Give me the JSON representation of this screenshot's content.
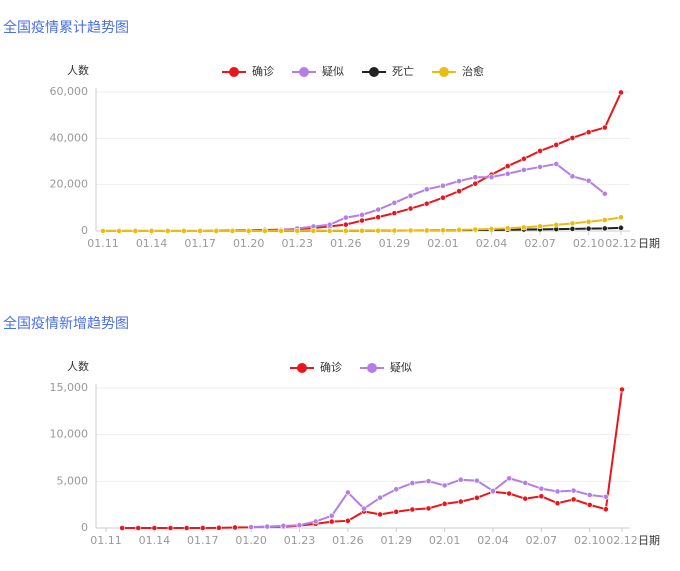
{
  "chart_data": [
    {
      "type": "line",
      "title": "全国疫情累计趋势图",
      "y_label": "人数",
      "x_label": "日期",
      "categories": [
        "01.11",
        null,
        null,
        "01.14",
        null,
        null,
        "01.17",
        null,
        null,
        "01.20",
        null,
        null,
        "01.23",
        null,
        null,
        "01.26",
        null,
        null,
        "01.29",
        null,
        null,
        "02.01",
        null,
        null,
        "02.04",
        null,
        null,
        "02.07",
        null,
        null,
        "02.10",
        null,
        "02.12"
      ],
      "series": [
        {
          "name": "确诊",
          "color": "#e8161d",
          "values": [
            41,
            41,
            41,
            41,
            41,
            45,
            62,
            121,
            198,
            291,
            440,
            571,
            830,
            1287,
            1975,
            2744,
            4515,
            5974,
            7711,
            9692,
            11791,
            14380,
            17205,
            20438,
            24324,
            28018,
            31161,
            34546,
            37198,
            40171,
            42638,
            44653,
            59804
          ]
        },
        {
          "name": "疑似",
          "color": "#b57de6",
          "values": [
            null,
            null,
            null,
            null,
            null,
            null,
            null,
            null,
            null,
            54,
            37,
            393,
            1072,
            1965,
            2684,
            5794,
            6973,
            9239,
            12167,
            15238,
            17988,
            19544,
            21558,
            23214,
            23260,
            24702,
            26359,
            27657,
            28942,
            23589,
            21675,
            16067,
            null
          ]
        },
        {
          "name": "死亡",
          "color": "#222222",
          "values": [
            1,
            1,
            1,
            1,
            1,
            1,
            2,
            2,
            3,
            6,
            9,
            17,
            25,
            41,
            56,
            80,
            106,
            132,
            170,
            213,
            259,
            304,
            361,
            425,
            490,
            563,
            636,
            722,
            811,
            908,
            1016,
            1113,
            1368
          ]
        },
        {
          "name": "治愈",
          "color": "#e8bd10",
          "values": [
            2,
            6,
            7,
            9,
            12,
            15,
            19,
            24,
            25,
            25,
            25,
            28,
            34,
            38,
            51,
            60,
            103,
            124,
            171,
            216,
            243,
            328,
            475,
            632,
            892,
            1153,
            1540,
            2050,
            2649,
            3281,
            3996,
            4740,
            5911
          ]
        }
      ],
      "ylim": [
        0,
        60000
      ],
      "yticks": [
        0,
        {
          "value": 20000,
          "label": "20,000"
        },
        {
          "value": 40000,
          "label": "40,000"
        },
        {
          "value": 60000,
          "label": "60,000"
        }
      ],
      "grid": true,
      "legend": "top"
    },
    {
      "type": "line",
      "title": "全国疫情新增趋势图",
      "y_label": "人数",
      "x_label": "日期",
      "categories": [
        "01.11",
        null,
        null,
        "01.14",
        null,
        null,
        "01.17",
        null,
        null,
        "01.20",
        null,
        null,
        "01.23",
        null,
        null,
        "01.26",
        null,
        null,
        "01.29",
        null,
        null,
        "02.01",
        null,
        null,
        "02.04",
        null,
        null,
        "02.07",
        null,
        null,
        "02.10",
        null,
        "02.12"
      ],
      "series": [
        {
          "name": "确诊",
          "color": "#e8161d",
          "values": [
            null,
            0,
            0,
            0,
            0,
            0,
            4,
            17,
            59,
            77,
            149,
            131,
            259,
            444,
            688,
            769,
            1771,
            1459,
            1737,
            1982,
            2102,
            2590,
            2829,
            3235,
            3887,
            3694,
            3143,
            3399,
            2656,
            3062,
            2478,
            2015,
            14840
          ]
        },
        {
          "name": "疑似",
          "color": "#b57de6",
          "values": [
            null,
            null,
            null,
            null,
            null,
            null,
            null,
            null,
            null,
            100,
            150,
            230,
            300,
            700,
            1309,
            3806,
            2077,
            3248,
            4148,
            4812,
            5019,
            4562,
            5173,
            5072,
            3971,
            5328,
            4833,
            4214,
            3916,
            4008,
            3536,
            3342,
            null
          ]
        }
      ],
      "ylim": [
        0,
        15000
      ],
      "yticks": [
        0,
        {
          "value": 5000,
          "label": "5,000"
        },
        {
          "value": 10000,
          "label": "10,000"
        },
        {
          "value": 15000,
          "label": "15,000"
        }
      ],
      "grid": true,
      "legend": "top"
    }
  ]
}
